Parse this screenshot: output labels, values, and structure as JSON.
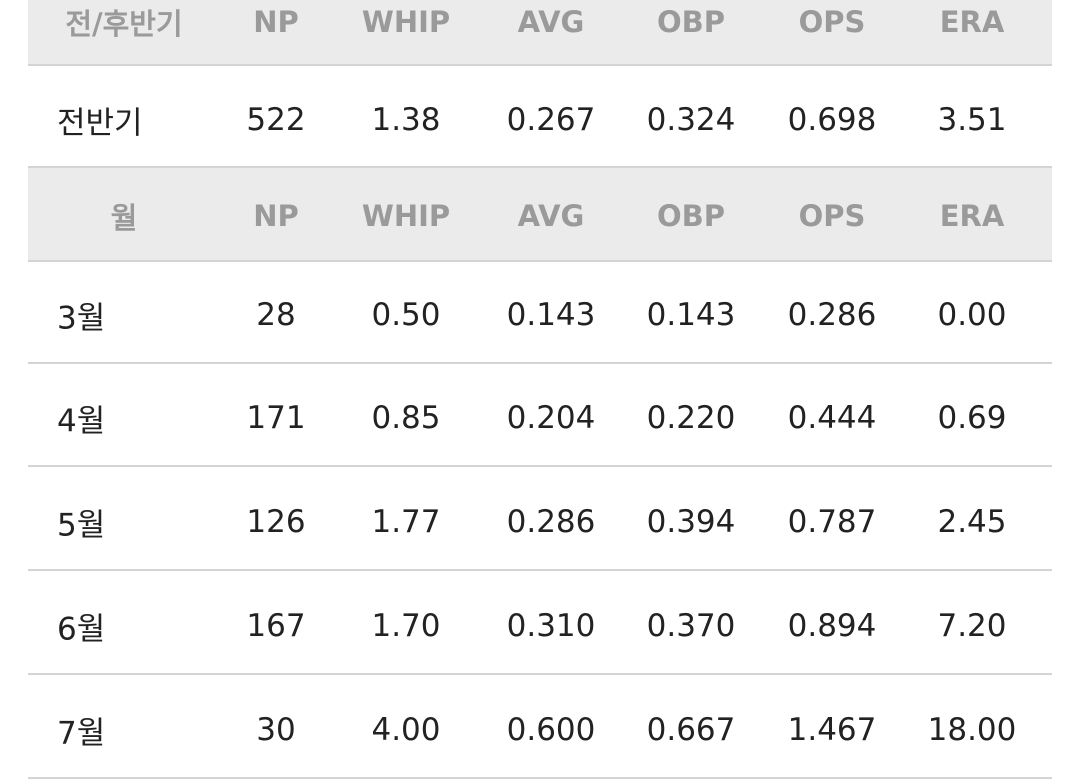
{
  "tables": [
    {
      "header": [
        "전/후반기",
        "NP",
        "WHIP",
        "AVG",
        "OBP",
        "OPS",
        "ERA"
      ],
      "rows": [
        [
          "전반기",
          "522",
          "1.38",
          "0.267",
          "0.324",
          "0.698",
          "3.51"
        ]
      ]
    },
    {
      "header": [
        "월",
        "NP",
        "WHIP",
        "AVG",
        "OBP",
        "OPS",
        "ERA"
      ],
      "rows": [
        [
          "3월",
          "28",
          "0.50",
          "0.143",
          "0.143",
          "0.286",
          "0.00"
        ],
        [
          "4월",
          "171",
          "0.85",
          "0.204",
          "0.220",
          "0.444",
          "0.69"
        ],
        [
          "5월",
          "126",
          "1.77",
          "0.286",
          "0.394",
          "0.787",
          "2.45"
        ],
        [
          "6월",
          "167",
          "1.70",
          "0.310",
          "0.370",
          "0.894",
          "7.20"
        ],
        [
          "7월",
          "30",
          "4.00",
          "0.600",
          "0.667",
          "1.467",
          "18.00"
        ]
      ]
    }
  ]
}
